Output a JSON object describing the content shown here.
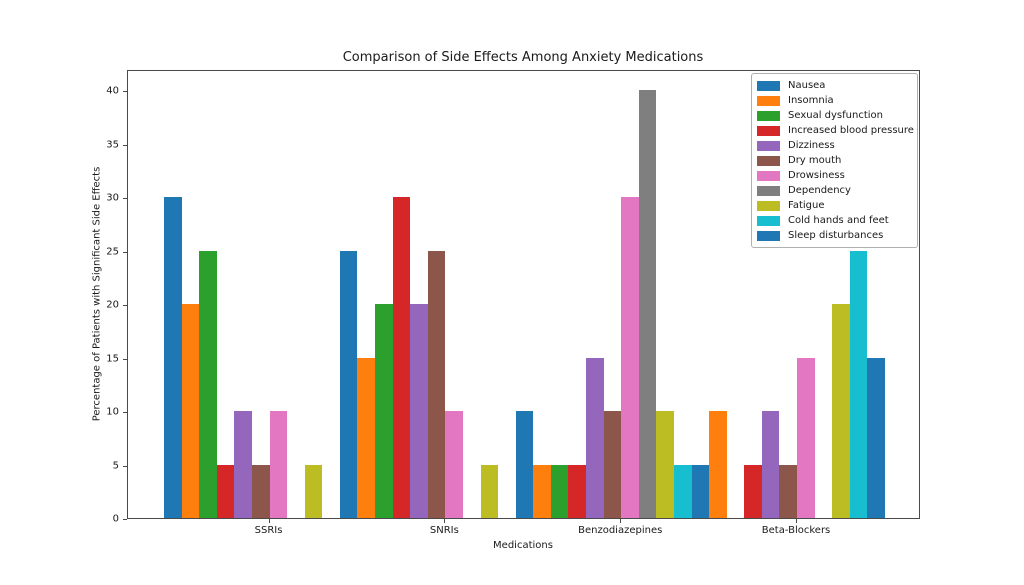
{
  "chart_data": {
    "type": "bar",
    "title": "Comparison of Side Effects Among Anxiety Medications",
    "xlabel": "Medications",
    "ylabel": "Percentage of Patients with Significant Side Effects",
    "categories": [
      "SSRIs",
      "SNRIs",
      "Benzodiazepines",
      "Beta-Blockers"
    ],
    "series": [
      {
        "name": "Nausea",
        "color": "#1f77b4",
        "values": [
          30,
          25,
          10,
          0
        ]
      },
      {
        "name": "Insomnia",
        "color": "#ff7f0e",
        "values": [
          20,
          15,
          5,
          10
        ]
      },
      {
        "name": "Sexual dysfunction",
        "color": "#2ca02c",
        "values": [
          25,
          20,
          5,
          0
        ]
      },
      {
        "name": "Increased blood pressure",
        "color": "#d62728",
        "values": [
          5,
          30,
          5,
          5
        ]
      },
      {
        "name": "Dizziness",
        "color": "#9467bd",
        "values": [
          10,
          20,
          15,
          10
        ]
      },
      {
        "name": "Dry mouth",
        "color": "#8c564b",
        "values": [
          5,
          25,
          10,
          5
        ]
      },
      {
        "name": "Drowsiness",
        "color": "#e377c2",
        "values": [
          10,
          10,
          30,
          15
        ]
      },
      {
        "name": "Dependency",
        "color": "#7f7f7f",
        "values": [
          0,
          0,
          40,
          0
        ]
      },
      {
        "name": "Fatigue",
        "color": "#bcbd22",
        "values": [
          5,
          5,
          10,
          20
        ]
      },
      {
        "name": "Cold hands and feet",
        "color": "#17becf",
        "values": [
          0,
          0,
          5,
          25
        ]
      },
      {
        "name": "Sleep disturbances",
        "color": "#1f77b4",
        "values": [
          0,
          0,
          5,
          15
        ]
      }
    ],
    "yticks": [
      0,
      5,
      10,
      15,
      20,
      25,
      30,
      35,
      40
    ],
    "ylim": [
      0,
      42
    ],
    "legend_position": "upper right",
    "grid": false,
    "background_color": "#ffffff",
    "spine_color": "#4a4a4a"
  }
}
